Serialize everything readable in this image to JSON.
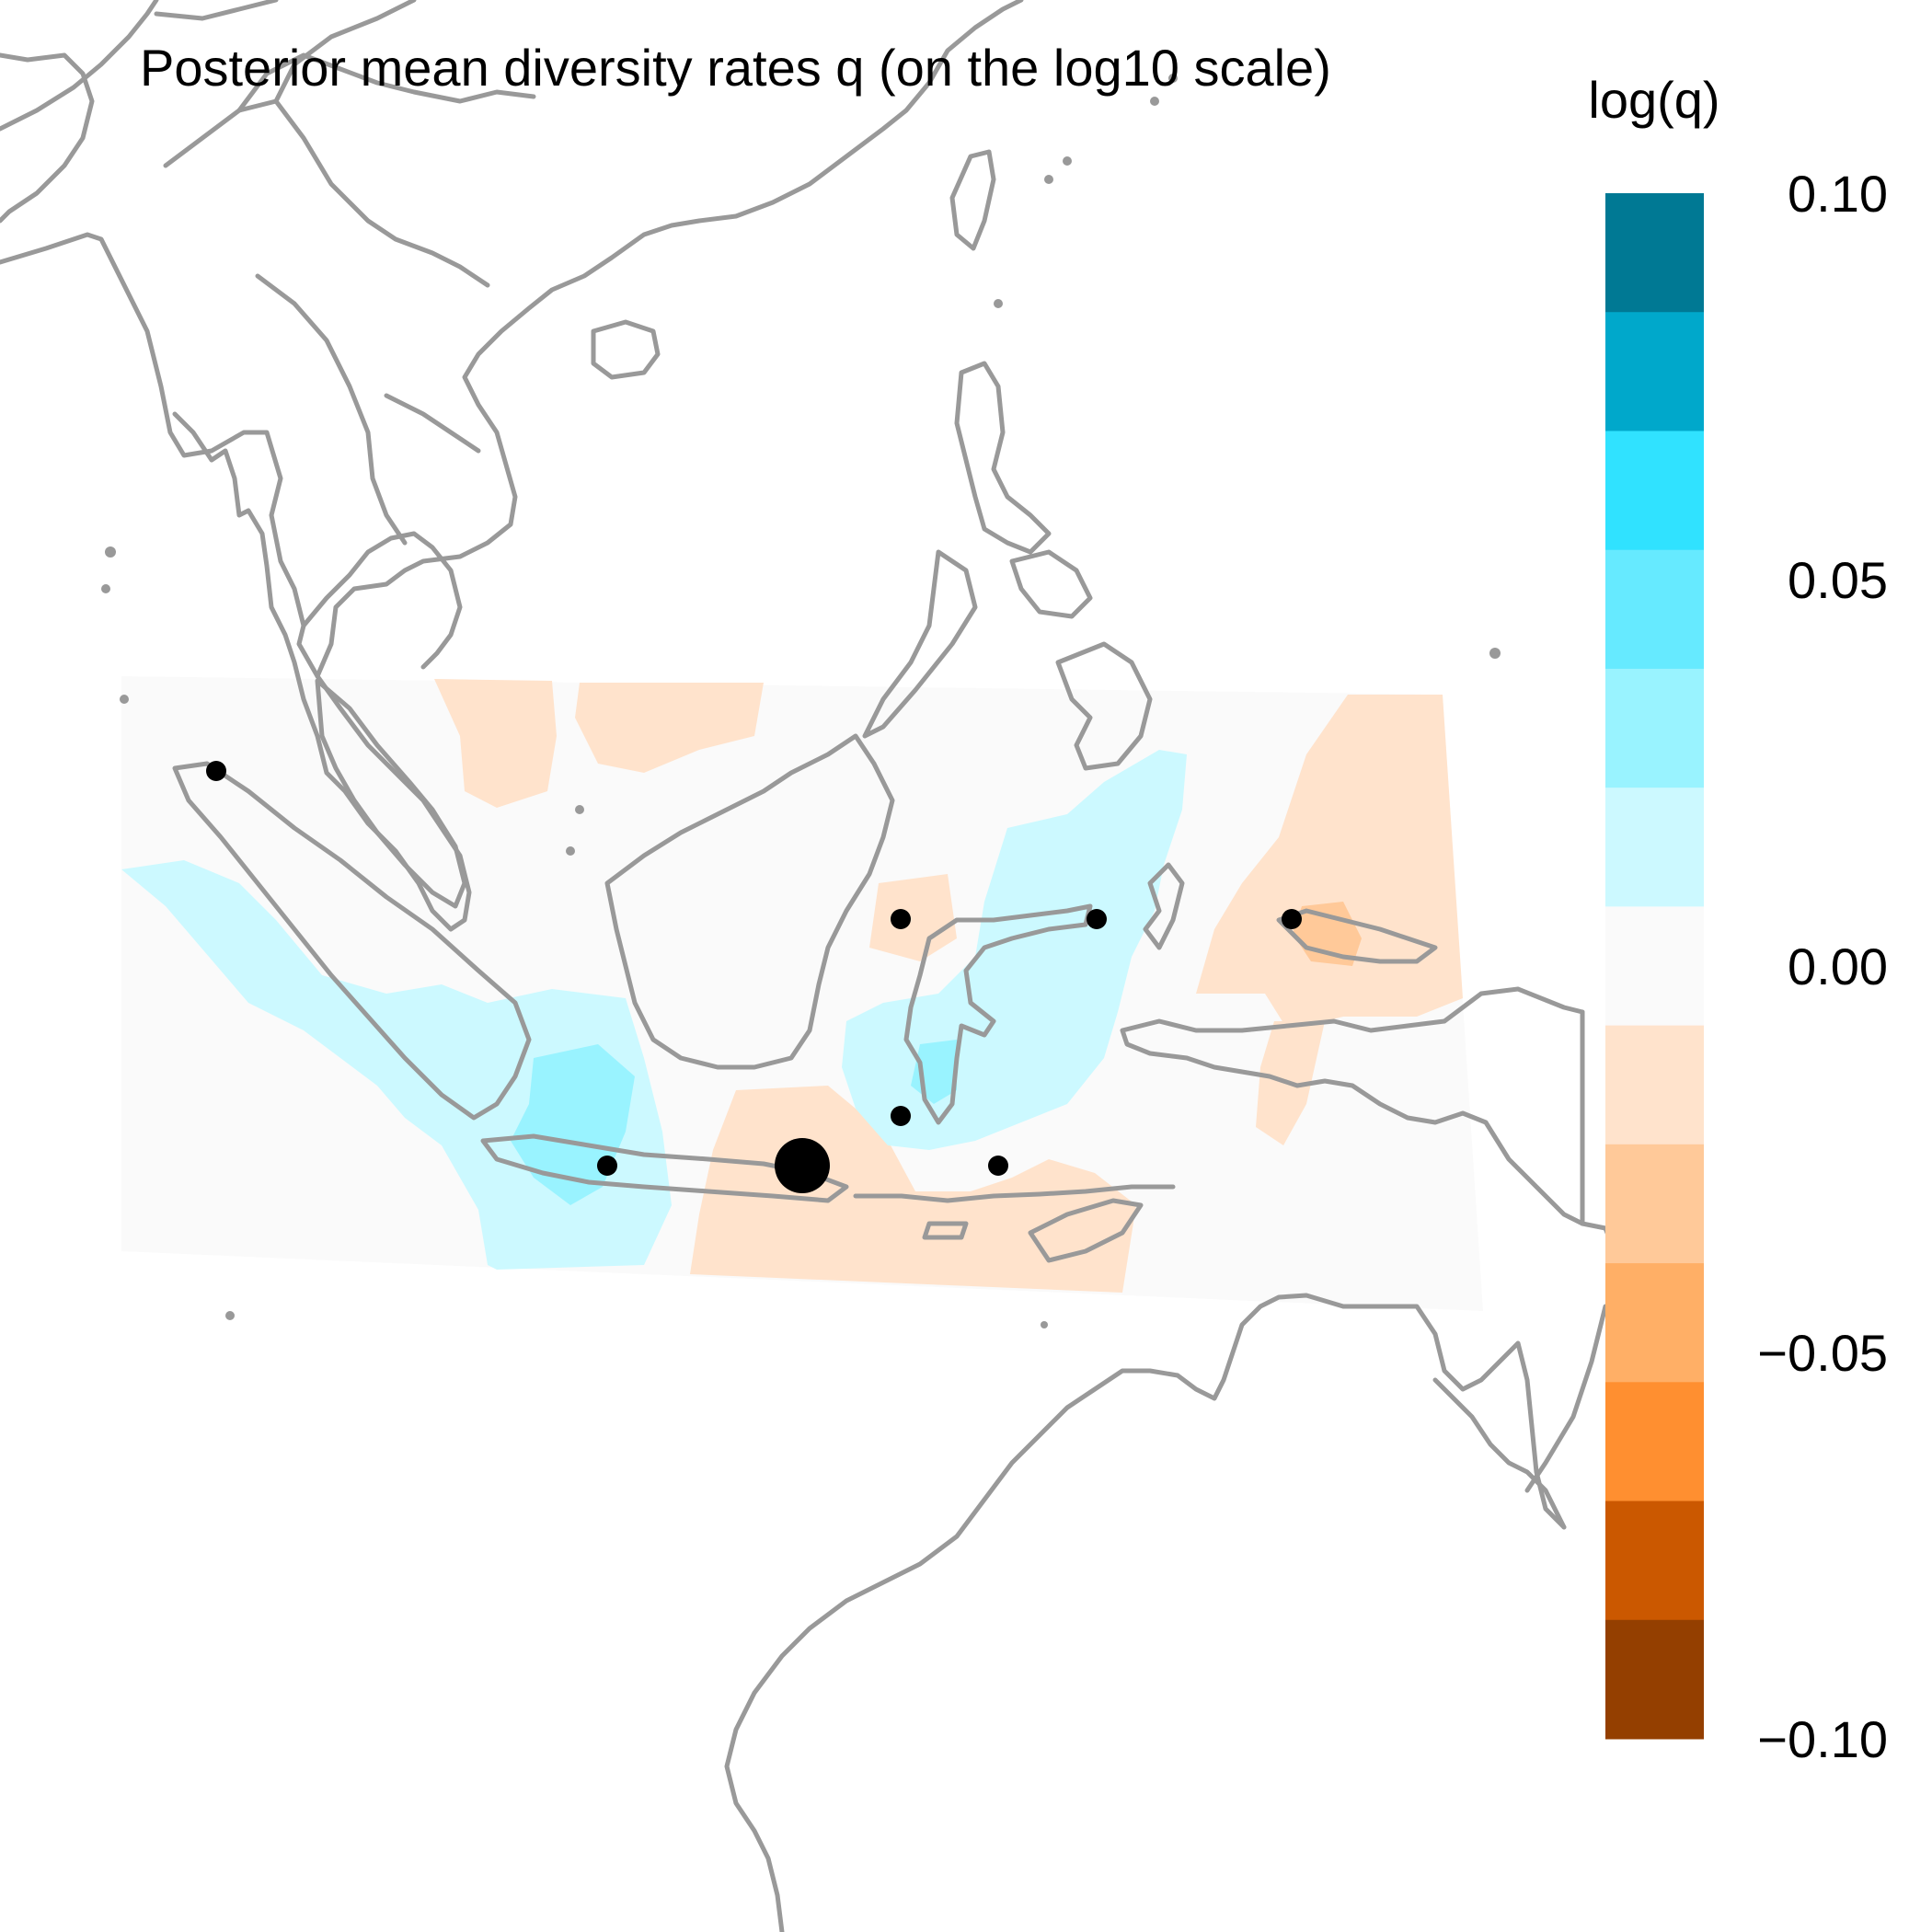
{
  "title": "Posterior mean diversity rates q (on the log10 scale)",
  "legend": {
    "title": "log(q)",
    "min": -0.1,
    "max": 0.1,
    "ticks": [
      {
        "value": 0.1,
        "label": "0.10"
      },
      {
        "value": 0.05,
        "label": "0.05"
      },
      {
        "value": 0.0,
        "label": "0.00"
      },
      {
        "value": -0.05,
        "label": "−0.05"
      },
      {
        "value": -0.1,
        "label": "−0.10"
      }
    ],
    "colors_top_to_bottom": [
      "#007994",
      "#00A8CB",
      "#30E2FF",
      "#66EAFF",
      "#99F3FF",
      "#CCF9FF",
      "#FAFAFA",
      "#FFE3CC",
      "#FFC999",
      "#FFAF66",
      "#FF8F30",
      "#CB5800",
      "#943F00"
    ]
  },
  "colors": {
    "coastline": "#999999",
    "surface_neutral": "#FAFAFA",
    "surface_light_blue": "#CCF9FF",
    "surface_mid_blue": "#99F3FF",
    "surface_light_orange": "#FFE3CC",
    "surface_mid_orange": "#FFC999",
    "sample_point": "#000000"
  },
  "sample_sites": {
    "count": 8,
    "sizes": [
      "small",
      "small",
      "small",
      "small",
      "small",
      "small",
      "small",
      "large"
    ]
  }
}
